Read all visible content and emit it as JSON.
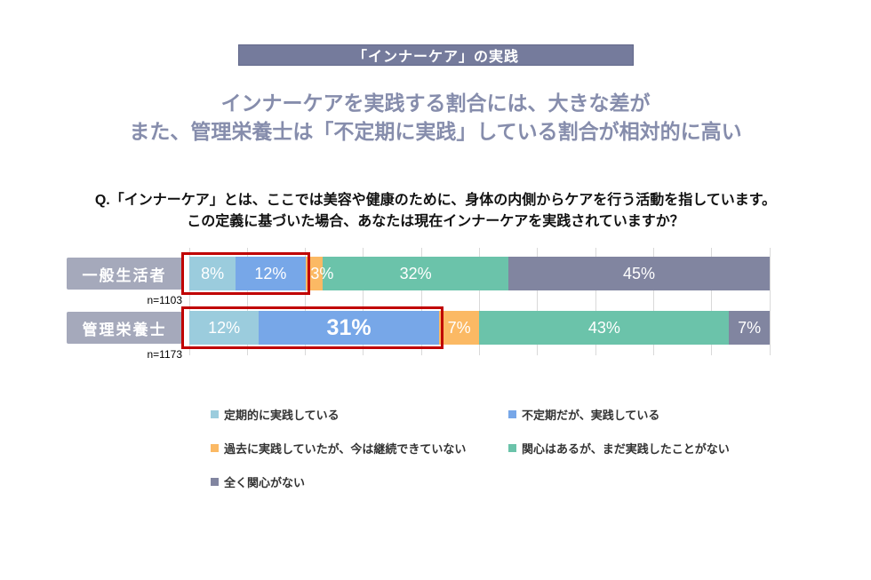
{
  "header": {
    "band_title": "「インナーケア」の実践"
  },
  "headline": {
    "line1": "インナーケアを実践する割合には、大きな差が",
    "line2": "また、管理栄養士は「不定期に実践」している割合が相対的に高い"
  },
  "question": {
    "line1": "Q.「インナーケア」とは、ここでは美容や健康のために、身体の内側からケアを行う活動を指しています。",
    "line2": "この定義に基づいた場合、あなたは現在インナーケアを実践されていますか？"
  },
  "chart_data": {
    "type": "bar",
    "variant": "horizontal-stacked-100pct",
    "categories": [
      "一般生活者",
      "管理栄養士"
    ],
    "sample_labels": [
      "n=1103",
      "n=1173"
    ],
    "series": [
      {
        "name": "定期的に実践している",
        "color": "#9BCCDD",
        "values": [
          8,
          12
        ]
      },
      {
        "name": "不定期だが、実践している",
        "color": "#77A7E8",
        "values": [
          12,
          31
        ]
      },
      {
        "name": "過去に実践していたが、今は継続できていない",
        "color": "#FBB964",
        "values": [
          3,
          7
        ]
      },
      {
        "name": "関心はあるが、まだ実践したことがない",
        "color": "#6BC3AA",
        "values": [
          32,
          43
        ]
      },
      {
        "name": "全く関心がない",
        "color": "#8185A0",
        "values": [
          45,
          7
        ]
      }
    ],
    "value_label_suffix": "%",
    "xlim": [
      0,
      100
    ],
    "gridline_step_pct": 10,
    "grid_on": true,
    "emphasis_label": {
      "row_index": 1,
      "segment_index": 1
    },
    "highlight_boxes": [
      {
        "row_index": 0,
        "from_segment": 0,
        "to_segment": 1,
        "color": "#C00000"
      },
      {
        "row_index": 1,
        "from_segment": 0,
        "to_segment": 1,
        "color": "#C00000"
      }
    ],
    "legend_position": "bottom-two-columns"
  },
  "legend": {
    "item_refs": [
      {
        "series_index": 0,
        "col": 0,
        "row": 0
      },
      {
        "series_index": 1,
        "col": 1,
        "row": 0
      },
      {
        "series_index": 2,
        "col": 0,
        "row": 1
      },
      {
        "series_index": 3,
        "col": 1,
        "row": 1
      },
      {
        "series_index": 4,
        "col": 0,
        "row": 2
      }
    ]
  },
  "colors": {
    "band_bg": "#757B9C",
    "band_border": "#62688A",
    "headline_text": "#868DAC",
    "question_text": "#111111",
    "category_box_bg": "#A5A9BB",
    "category_box_text": "#FFFFFF",
    "gridline": "#D9D9D9",
    "highlight": "#C00000",
    "bar_label_text": "#FFFFFF",
    "sample_label_text": "#000000",
    "legend_text": "#333333",
    "background": "#FFFFFF"
  }
}
